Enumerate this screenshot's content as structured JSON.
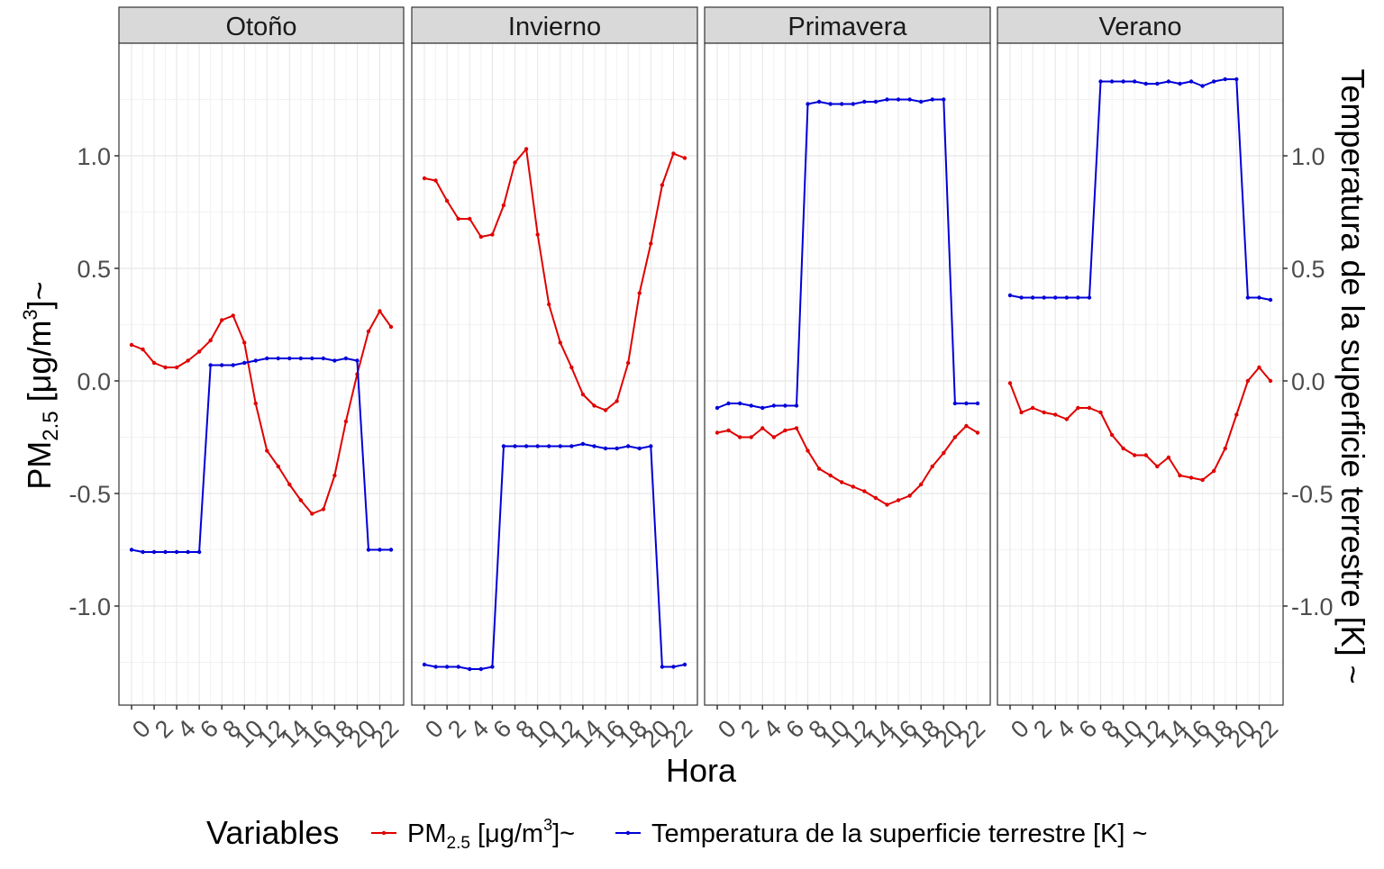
{
  "chart_data": {
    "type": "line",
    "facet_by": "season",
    "facets": [
      "Otoño",
      "Invierno",
      "Primavera",
      "Verano"
    ],
    "x": [
      0,
      1,
      2,
      3,
      4,
      5,
      6,
      7,
      8,
      9,
      10,
      11,
      12,
      13,
      14,
      15,
      16,
      17,
      18,
      19,
      20,
      21,
      22,
      23
    ],
    "x_ticks": [
      "0",
      "2",
      "4",
      "6",
      "8",
      "10",
      "12",
      "14",
      "16",
      "18",
      "20",
      "22"
    ],
    "xlabel": "Hora",
    "ylabel_left": {
      "main": "PM",
      "sub": "2.5",
      "rest": " [μg/m",
      "sup": "3",
      "end": "]~"
    },
    "ylabel_right": "Temperatura de la superficie terrestre [K] ~",
    "ylim": [
      -1.44,
      1.5
    ],
    "y_ticks": [
      {
        "value": -1.0,
        "label": "-1.0"
      },
      {
        "value": -0.5,
        "label": "-0.5"
      },
      {
        "value": 0.0,
        "label": "0.0"
      },
      {
        "value": 0.5,
        "label": "0.5"
      },
      {
        "value": 1.0,
        "label": "1.0"
      }
    ],
    "grid": true,
    "legend": {
      "position": "bottom",
      "title": "Variables",
      "pm_label": {
        "main": "PM",
        "sub": "2.5",
        "rest": " [μg/m",
        "sup": "3",
        "end": "]~"
      },
      "temp_label": "Temperatura de la superficie terrestre [K] ~"
    },
    "series": [
      {
        "key": "pm25",
        "color": "#e00000",
        "values": {
          "Otoño": [
            0.16,
            0.14,
            0.08,
            0.06,
            0.06,
            0.09,
            0.13,
            0.18,
            0.27,
            0.29,
            0.17,
            -0.1,
            -0.31,
            -0.38,
            -0.46,
            -0.53,
            -0.59,
            -0.57,
            -0.42,
            -0.18,
            0.03,
            0.22,
            0.31,
            0.24
          ],
          "Invierno": [
            0.9,
            0.89,
            0.8,
            0.72,
            0.72,
            0.64,
            0.65,
            0.78,
            0.97,
            1.03,
            0.65,
            0.34,
            0.17,
            0.06,
            -0.06,
            -0.11,
            -0.13,
            -0.09,
            0.08,
            0.39,
            0.61,
            0.87,
            1.01,
            0.99
          ],
          "Primavera": [
            -0.23,
            -0.22,
            -0.25,
            -0.25,
            -0.21,
            -0.25,
            -0.22,
            -0.21,
            -0.31,
            -0.39,
            -0.42,
            -0.45,
            -0.47,
            -0.49,
            -0.52,
            -0.55,
            -0.53,
            -0.51,
            -0.46,
            -0.38,
            -0.32,
            -0.25,
            -0.2,
            -0.23
          ],
          "Verano": [
            -0.01,
            -0.14,
            -0.12,
            -0.14,
            -0.15,
            -0.17,
            -0.12,
            -0.12,
            -0.14,
            -0.24,
            -0.3,
            -0.33,
            -0.33,
            -0.38,
            -0.34,
            -0.42,
            -0.43,
            -0.44,
            -0.4,
            -0.3,
            -0.15,
            0.0,
            0.06,
            0.0
          ]
        }
      },
      {
        "key": "temp",
        "color": "#0000d8",
        "values": {
          "Otoño": [
            -0.75,
            -0.76,
            -0.76,
            -0.76,
            -0.76,
            -0.76,
            -0.76,
            0.07,
            0.07,
            0.07,
            0.08,
            0.09,
            0.1,
            0.1,
            0.1,
            0.1,
            0.1,
            0.1,
            0.09,
            0.1,
            0.09,
            -0.75,
            -0.75,
            -0.75
          ],
          "Invierno": [
            -1.26,
            -1.27,
            -1.27,
            -1.27,
            -1.28,
            -1.28,
            -1.27,
            -0.29,
            -0.29,
            -0.29,
            -0.29,
            -0.29,
            -0.29,
            -0.29,
            -0.28,
            -0.29,
            -0.3,
            -0.3,
            -0.29,
            -0.3,
            -0.29,
            -1.27,
            -1.27,
            -1.26
          ],
          "Primavera": [
            -0.12,
            -0.1,
            -0.1,
            -0.11,
            -0.12,
            -0.11,
            -0.11,
            -0.11,
            1.23,
            1.24,
            1.23,
            1.23,
            1.23,
            1.24,
            1.24,
            1.25,
            1.25,
            1.25,
            1.24,
            1.25,
            1.25,
            -0.1,
            -0.1,
            -0.1
          ],
          "Verano": [
            0.38,
            0.37,
            0.37,
            0.37,
            0.37,
            0.37,
            0.37,
            0.37,
            1.33,
            1.33,
            1.33,
            1.33,
            1.32,
            1.32,
            1.33,
            1.32,
            1.33,
            1.31,
            1.33,
            1.34,
            1.34,
            0.37,
            0.37,
            0.36
          ]
        }
      }
    ]
  }
}
